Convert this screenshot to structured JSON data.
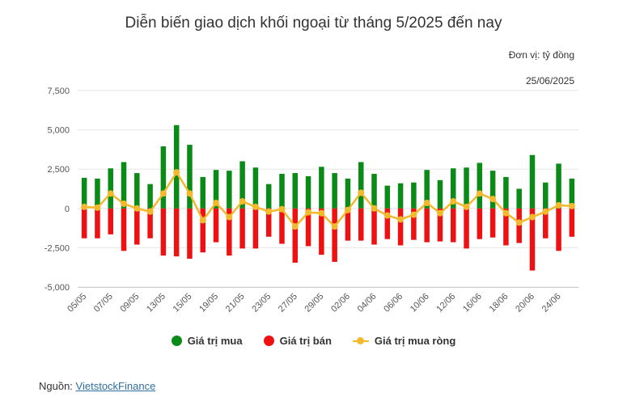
{
  "title": "Diễn biến giao dịch khối ngoại từ tháng 5/2025 đến nay",
  "unit_label": "Đơn vị: tỷ đồng",
  "date_label": "25/06/2025",
  "source": {
    "prefix": "Nguồn: ",
    "link_text": "VietstockFinance"
  },
  "colors": {
    "buy": "#0a8a17",
    "sell": "#ee1111",
    "net": "#f2b92c",
    "grid": "#e6e6e6",
    "axis_text": "#555555"
  },
  "legend": [
    {
      "label": "Giá trị mua",
      "series": "buy"
    },
    {
      "label": "Giá trị bán",
      "series": "sell"
    },
    {
      "label": "Giá trị mua ròng",
      "series": "net"
    }
  ],
  "chart_data": {
    "type": "bar",
    "title": "Diễn biến giao dịch khối ngoại từ tháng 5/2025 đến nay",
    "ylim": [
      -5000,
      7500
    ],
    "yticks": [
      -5000,
      -2500,
      0,
      2500,
      5000,
      7500
    ],
    "ytick_labels": [
      "-5,000",
      "-2,500",
      "0",
      "2,500",
      "5,000",
      "7,500"
    ],
    "grid": true,
    "legend_position": "bottom",
    "categories": [
      "05/05",
      "06/05",
      "07/05",
      "08/05",
      "09/05",
      "12/05",
      "13/05",
      "14/05",
      "15/05",
      "16/05",
      "19/05",
      "20/05",
      "21/05",
      "22/05",
      "23/05",
      "26/05",
      "27/05",
      "28/05",
      "29/05",
      "30/05",
      "02/06",
      "03/06",
      "04/06",
      "05/06",
      "06/06",
      "09/06",
      "10/06",
      "11/06",
      "12/06",
      "13/06",
      "16/06",
      "17/06",
      "18/06",
      "19/06",
      "20/06",
      "23/06",
      "24/06",
      "25/06"
    ],
    "shown_xtick_labels": [
      "05/05",
      "07/05",
      "09/05",
      "13/05",
      "15/05",
      "19/05",
      "21/05",
      "23/05",
      "27/05",
      "29/05",
      "02/06",
      "04/06",
      "06/06",
      "10/06",
      "12/06",
      "16/06",
      "18/06",
      "20/06",
      "24/06"
    ],
    "series": [
      {
        "name": "Giá trị mua",
        "type": "bar",
        "values": [
          1950,
          1900,
          2550,
          2950,
          2250,
          1550,
          3950,
          5300,
          4050,
          2000,
          2450,
          2400,
          3000,
          2600,
          1550,
          2200,
          2250,
          2050,
          2650,
          2250,
          1900,
          2950,
          2200,
          1450,
          1600,
          1650,
          2450,
          1800,
          2550,
          2600,
          2900,
          2400,
          2000,
          1250,
          3400,
          1650,
          2850,
          1900
        ]
      },
      {
        "name": "Giá trị bán",
        "type": "bar",
        "values": [
          -1900,
          -1900,
          -1650,
          -2700,
          -2300,
          -1900,
          -3000,
          -3050,
          -3200,
          -2800,
          -2150,
          -3000,
          -2550,
          -2550,
          -1800,
          -2250,
          -3450,
          -2400,
          -2950,
          -3400,
          -2050,
          -2050,
          -2300,
          -1950,
          -2350,
          -2000,
          -2150,
          -2100,
          -2150,
          -2550,
          -1950,
          -1850,
          -2350,
          -2200,
          -3950,
          -1900,
          -2700,
          -1800
        ]
      },
      {
        "name": "Giá trị mua ròng",
        "type": "line",
        "values": [
          100,
          50,
          950,
          300,
          0,
          -200,
          950,
          2300,
          950,
          -750,
          350,
          -550,
          450,
          100,
          -200,
          -50,
          -1150,
          -250,
          -300,
          -1150,
          -100,
          1000,
          0,
          -450,
          -700,
          -400,
          350,
          -300,
          450,
          100,
          950,
          600,
          -300,
          -900,
          -550,
          -200,
          200,
          150
        ]
      }
    ]
  }
}
